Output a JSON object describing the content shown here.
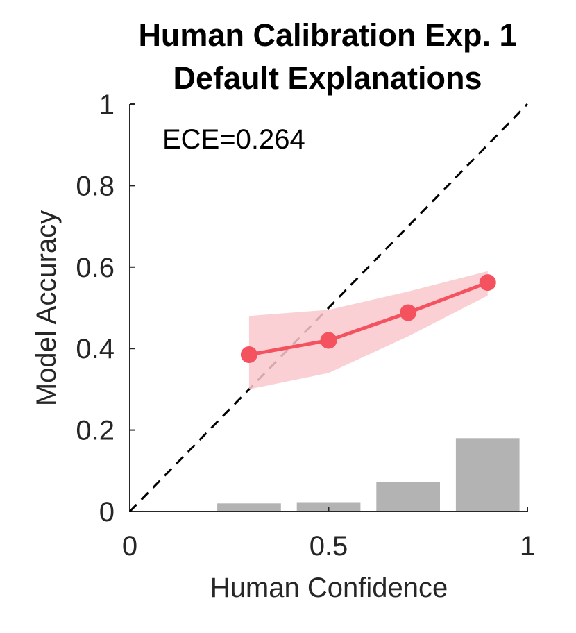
{
  "chart_data": {
    "type": "line",
    "title": "Human Calibration Exp. 1",
    "subtitle": "Default Explanations",
    "xlabel": "Human Confidence",
    "ylabel": "Model Accuracy",
    "xlim": [
      0,
      1
    ],
    "ylim": [
      0,
      1
    ],
    "xticks": [
      0,
      0.5,
      1
    ],
    "xtick_labels": [
      "0",
      "0.5",
      "1"
    ],
    "yticks": [
      0,
      0.2,
      0.4,
      0.6,
      0.8,
      1
    ],
    "ytick_labels": [
      "0",
      "0.2",
      "0.4",
      "0.6",
      "0.8",
      "1"
    ],
    "grid": false,
    "annotation": "ECE=0.264",
    "reference_line": {
      "x": [
        0,
        1
      ],
      "y": [
        0,
        1
      ],
      "style": "dashed",
      "color": "#000000"
    },
    "series": [
      {
        "x": [
          0.3,
          0.5,
          0.7,
          0.9
        ],
        "y": [
          0.385,
          0.42,
          0.488,
          0.562
        ],
        "lower": [
          0.3,
          0.34,
          0.43,
          0.53
        ],
        "upper": [
          0.48,
          0.495,
          0.54,
          0.59
        ],
        "color": "#f5525f",
        "band_color": "#f9c8cc"
      }
    ],
    "histogram": {
      "bin_centers": [
        0.3,
        0.5,
        0.7,
        0.9
      ],
      "bin_width": 0.16,
      "values": [
        0.02,
        0.023,
        0.072,
        0.18
      ],
      "color": "#b3b3b3"
    }
  }
}
